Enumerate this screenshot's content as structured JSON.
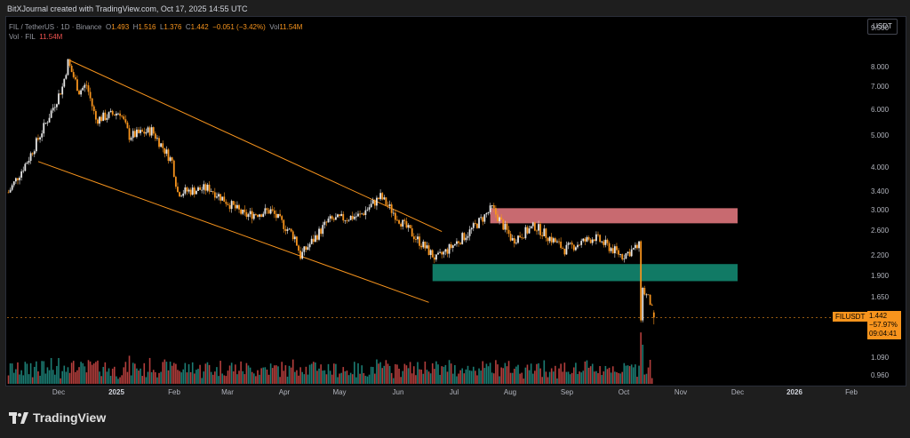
{
  "header": {
    "credit": "BitXJournal created with TradingView.com, Oct 17, 2025 14:55 UTC"
  },
  "legend": {
    "symbol": "FIL / TetherUS · 1D · Binance",
    "open_label": "O",
    "open": "1.493",
    "high_label": "H",
    "high": "1.516",
    "low_label": "L",
    "low": "1.376",
    "close_label": "C",
    "close": "1.442",
    "change": "−0.051 (−3.42%)",
    "vol_label": "Vol",
    "vol": "11.54M",
    "vol_series_label": "Vol · FIL",
    "vol_series_value": "11.54M"
  },
  "axis": {
    "currency": "USDT",
    "price_labels": [
      "9.500",
      "8.000",
      "7.000",
      "6.000",
      "5.000",
      "4.000",
      "3.400",
      "3.000",
      "2.600",
      "2.200",
      "1.900",
      "1.650",
      "1.090",
      "0.960"
    ],
    "time_labels": [
      {
        "text": "Dec",
        "bold": false
      },
      {
        "text": "2025",
        "bold": true
      },
      {
        "text": "Feb",
        "bold": false
      },
      {
        "text": "Mar",
        "bold": false
      },
      {
        "text": "Apr",
        "bold": false
      },
      {
        "text": "May",
        "bold": false
      },
      {
        "text": "Jun",
        "bold": false
      },
      {
        "text": "Jul",
        "bold": false
      },
      {
        "text": "Aug",
        "bold": false
      },
      {
        "text": "Sep",
        "bold": false
      },
      {
        "text": "Oct",
        "bold": false
      },
      {
        "text": "Nov",
        "bold": false
      },
      {
        "text": "Dec",
        "bold": false
      },
      {
        "text": "2026",
        "bold": true
      },
      {
        "text": "Feb",
        "bold": false
      }
    ]
  },
  "current": {
    "symbol_tag": "FILUSDT",
    "price": "1.442",
    "change_pct": "−57.97%",
    "countdown": "09:04:41"
  },
  "colors": {
    "bull": "#e6e6e6",
    "bear": "#f7941d",
    "channel": "#f7941d",
    "resistance_zone": "#c86a70",
    "support_zone": "#117a65",
    "vol_bull": "#26a69a",
    "vol_bear": "#ef5350"
  },
  "brand": {
    "name": "TradingView",
    "icon": "tradingview-logo-icon"
  },
  "chart_data": {
    "type": "candlestick",
    "symbol": "FIL / TetherUS",
    "interval": "1D",
    "price_scale": "log",
    "close_path": [
      [
        "2024-11-04",
        3.4
      ],
      [
        "2024-11-15",
        4.3
      ],
      [
        "2024-11-25",
        5.6
      ],
      [
        "2024-12-03",
        7.0
      ],
      [
        "2024-12-06",
        8.3
      ],
      [
        "2024-12-12",
        6.8
      ],
      [
        "2024-12-16",
        7.1
      ],
      [
        "2024-12-21",
        5.6
      ],
      [
        "2025-01-03",
        5.9
      ],
      [
        "2025-01-08",
        5.0
      ],
      [
        "2025-01-20",
        5.2
      ],
      [
        "2025-01-31",
        4.2
      ],
      [
        "2025-02-03",
        3.4
      ],
      [
        "2025-02-20",
        3.5
      ],
      [
        "2025-03-11",
        2.9
      ],
      [
        "2025-03-25",
        3.0
      ],
      [
        "2025-04-07",
        2.5
      ],
      [
        "2025-04-10",
        2.2
      ],
      [
        "2025-04-25",
        2.8
      ],
      [
        "2025-05-12",
        2.9
      ],
      [
        "2025-05-23",
        3.3
      ],
      [
        "2025-06-05",
        2.7
      ],
      [
        "2025-06-22",
        2.15
      ],
      [
        "2025-07-10",
        2.6
      ],
      [
        "2025-07-22",
        3.05
      ],
      [
        "2025-08-02",
        2.45
      ],
      [
        "2025-08-14",
        2.7
      ],
      [
        "2025-08-30",
        2.3
      ],
      [
        "2025-09-15",
        2.5
      ],
      [
        "2025-09-30",
        2.2
      ],
      [
        "2025-10-09",
        2.35
      ],
      [
        "2025-10-10",
        1.45
      ],
      [
        "2025-10-11",
        1.75
      ],
      [
        "2025-10-15",
        1.6
      ],
      [
        "2025-10-17",
        1.442
      ]
    ],
    "zones": [
      {
        "name": "resistance",
        "from": 2.75,
        "to": 3.05,
        "start": "2025-07-21",
        "end": "2025-12-01"
      },
      {
        "name": "support",
        "from": 1.85,
        "to": 2.08,
        "start": "2025-06-20",
        "end": "2025-12-01"
      }
    ],
    "channel": {
      "upper": [
        [
          "2024-12-07",
          8.4
        ],
        [
          "2025-06-25",
          2.6
        ]
      ],
      "lower": [
        [
          "2024-11-20",
          4.2
        ],
        [
          "2025-06-18",
          1.6
        ]
      ]
    },
    "last": {
      "open": 1.493,
      "high": 1.516,
      "low": 1.376,
      "close": 1.442,
      "volume": "11.54M",
      "change": -0.051,
      "change_pct": -3.42
    }
  }
}
